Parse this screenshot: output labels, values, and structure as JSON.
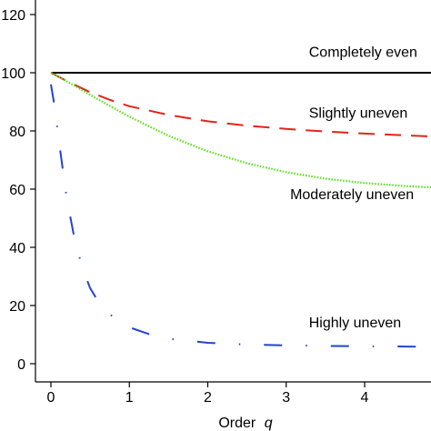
{
  "chart_data": {
    "type": "line",
    "xlabel": "Order",
    "xlabel_var": "q",
    "ylabel": "",
    "xlim": [
      -0.3,
      4.85
    ],
    "ylim": [
      -5,
      124
    ],
    "x_ticks": [
      0,
      1,
      2,
      3,
      4
    ],
    "y_ticks": [
      0,
      20,
      40,
      60,
      80,
      100,
      120
    ],
    "grid": false,
    "series": [
      {
        "name": "Completely even",
        "color": "#000000",
        "dash": "solid",
        "x": [
          0,
          0.5,
          1,
          1.5,
          2,
          2.5,
          3,
          3.5,
          4,
          4.5,
          4.85
        ],
        "y": [
          100,
          100,
          100,
          100,
          100,
          100,
          100,
          100,
          100,
          100,
          100
        ]
      },
      {
        "name": "Slightly uneven",
        "color": "#e0241c",
        "dash": "dashed",
        "x": [
          0,
          0.25,
          0.5,
          0.75,
          1,
          1.5,
          2,
          2.5,
          3,
          3.5,
          4,
          4.5,
          4.85
        ],
        "y": [
          100,
          96.5,
          93.3,
          90.7,
          88.5,
          85.5,
          83.3,
          81.8,
          80.7,
          79.8,
          79.1,
          78.5,
          78.1
        ]
      },
      {
        "name": "Moderately uneven",
        "color": "#5fe01e",
        "dash": "dotted",
        "x": [
          0,
          0.25,
          0.5,
          0.75,
          1,
          1.5,
          2,
          2.5,
          3,
          3.5,
          4,
          4.5,
          4.85
        ],
        "y": [
          100,
          96.3,
          92.4,
          88.6,
          84.9,
          78.3,
          73.0,
          68.9,
          65.8,
          63.6,
          62.1,
          61.1,
          60.6
        ]
      },
      {
        "name": "Highly uneven",
        "color": "#2244cc",
        "dash": "dashdot",
        "x": [
          0,
          0.05,
          0.1,
          0.2,
          0.3,
          0.4,
          0.5,
          0.6,
          0.75,
          0.9,
          1,
          1.25,
          1.5,
          2,
          2.5,
          3,
          3.5,
          4,
          4.5,
          4.85
        ],
        "y": [
          96,
          88,
          77,
          57,
          43,
          33,
          26,
          21.5,
          17,
          14,
          12.5,
          10.2,
          8.6,
          7.2,
          6.6,
          6.3,
          6.1,
          6.0,
          5.9,
          5.8
        ]
      }
    ],
    "annotations": [
      {
        "text": "Completely even",
        "x": 3.29,
        "y": 105.5
      },
      {
        "text": "Slightly uneven",
        "x": 3.29,
        "y": 84.5
      },
      {
        "text": "Moderately uneven",
        "x": 3.05,
        "y": 56.5
      },
      {
        "text": "Highly uneven",
        "x": 3.29,
        "y": 12.5
      }
    ]
  }
}
